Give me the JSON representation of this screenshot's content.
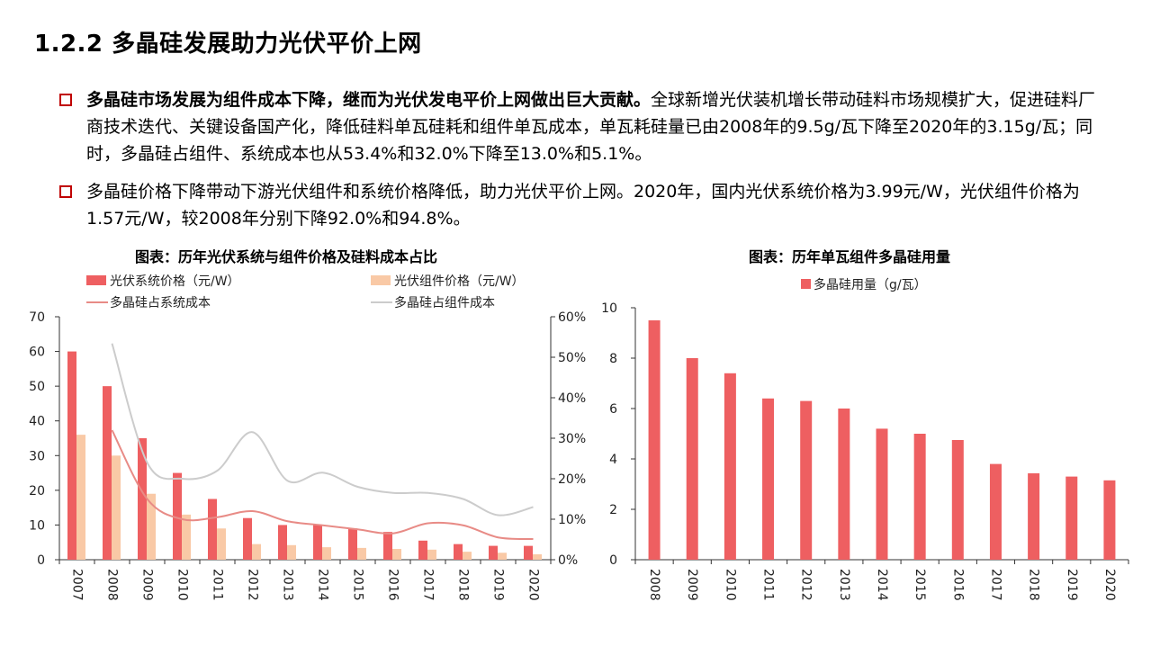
{
  "slide": {
    "title": "1.2.2 多晶硅发展助力光伏平价上网",
    "bullets": [
      {
        "bold": "多晶硅市场发展为组件成本下降，继而为光伏发电平价上网做出巨大贡献。",
        "text": "全球新增光伏装机增长带动硅料市场规模扩大，促进硅料厂商技术迭代、关键设备国产化，降低硅料单瓦硅耗和组件单瓦成本，单瓦耗硅量已由2008年的9.5g/瓦下降至2020年的3.15g/瓦；同时，多晶硅占组件、系统成本也从53.4%和32.0%下降至13.0%和5.1%。"
      },
      {
        "bold": "",
        "text": "多晶硅价格下降带动下游光伏组件和系统价格降低，助力光伏平价上网。2020年，国内光伏系统价格为3.99元/W，光伏组件价格为1.57元/W，较2008年分别下降92.0%和94.8%。"
      }
    ],
    "colors": {
      "bullet_mark": "#c00000",
      "bar_red": "#ee5f61",
      "bar_peach": "#f9c9a6",
      "line_red": "#e88b86",
      "line_gray": "#cccccc"
    }
  },
  "chart_data": [
    {
      "type": "bar",
      "title": "图表：历年光伏系统与组件价格及硅料成本占比",
      "categories": [
        "2007",
        "2008",
        "2009",
        "2010",
        "2011",
        "2012",
        "2013",
        "2014",
        "2015",
        "2016",
        "2017",
        "2018",
        "2019",
        "2020"
      ],
      "series": [
        {
          "name": "光伏系统价格（元/W）",
          "type": "bar",
          "axis": "left",
          "values": [
            60,
            50,
            35,
            25,
            17.5,
            12,
            10,
            10,
            9,
            8,
            5.5,
            4.5,
            4,
            3.99
          ]
        },
        {
          "name": "光伏组件价格（元/W）",
          "type": "bar",
          "axis": "left",
          "values": [
            36,
            30,
            19,
            13,
            9,
            4.5,
            4.2,
            3.6,
            3.4,
            3.1,
            2.9,
            2.3,
            2.0,
            1.57
          ]
        },
        {
          "name": "多晶硅占系统成本",
          "type": "line",
          "axis": "right",
          "values": [
            null,
            32.0,
            15.0,
            10.0,
            10.5,
            12.0,
            9.5,
            8.5,
            7.5,
            6.5,
            9.0,
            8.5,
            5.5,
            5.1
          ]
        },
        {
          "name": "多晶硅占组件成本",
          "type": "line",
          "axis": "right",
          "values": [
            null,
            53.4,
            24.0,
            20.0,
            22.0,
            31.5,
            19.5,
            21.5,
            18.0,
            16.5,
            16.5,
            15.0,
            11.0,
            13.0
          ]
        }
      ],
      "y_left": {
        "min": 0,
        "max": 70,
        "ticks": [
          "0",
          "10",
          "20",
          "30",
          "40",
          "50",
          "60",
          "70"
        ]
      },
      "y_right": {
        "min": 0,
        "max": 60,
        "ticks": [
          "0%",
          "10%",
          "20%",
          "30%",
          "40%",
          "50%",
          "60%"
        ]
      },
      "legend": "top",
      "grid": false
    },
    {
      "type": "bar",
      "title": "图表：历年单瓦组件多晶硅用量",
      "categories": [
        "2008",
        "2009",
        "2010",
        "2011",
        "2012",
        "2013",
        "2014",
        "2015",
        "2016",
        "2017",
        "2018",
        "2019",
        "2020"
      ],
      "series": [
        {
          "name": "多晶硅用量（g/瓦）",
          "values": [
            9.5,
            8.0,
            7.4,
            6.4,
            6.3,
            6.0,
            5.2,
            5.0,
            4.75,
            3.8,
            3.43,
            3.3,
            3.15
          ]
        }
      ],
      "y": {
        "min": 0,
        "max": 10,
        "ticks": [
          "0",
          "2",
          "4",
          "6",
          "8",
          "10"
        ]
      },
      "legend": "top",
      "grid": false
    }
  ]
}
